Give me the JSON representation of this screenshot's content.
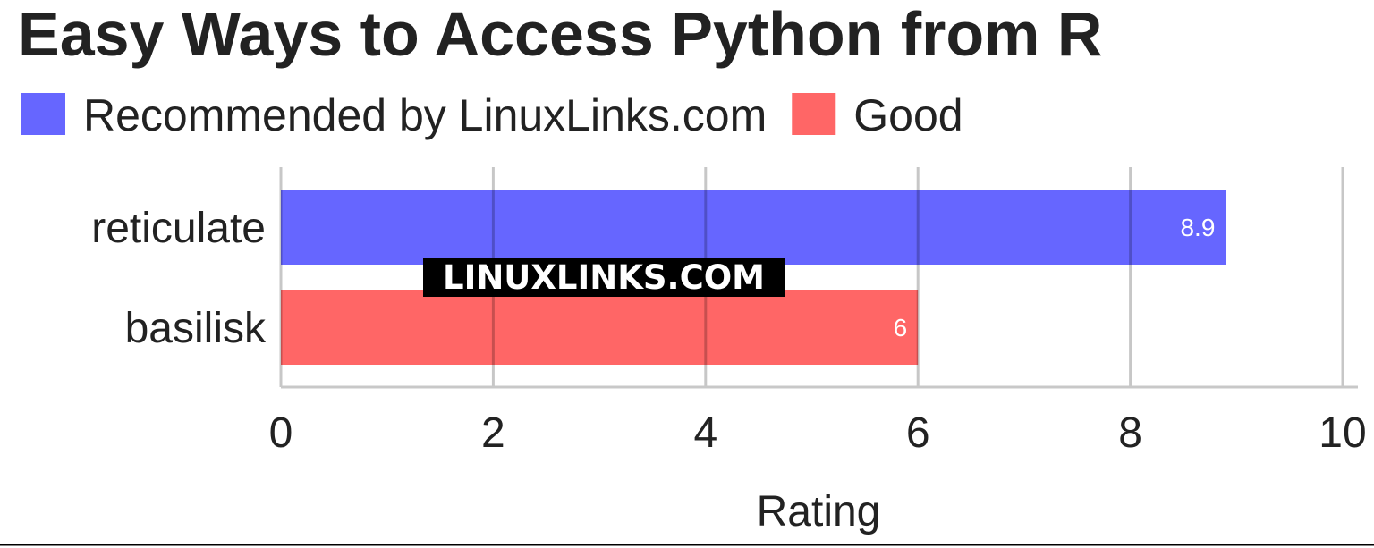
{
  "chart_data": {
    "type": "bar",
    "orientation": "horizontal",
    "title": "Easy Ways to Access Python from R",
    "categories": [
      "reticulate",
      "basilisk"
    ],
    "values": [
      8.9,
      6
    ],
    "series": [
      {
        "name": "Recommended by LinuxLinks.com",
        "color": "#6666ff"
      },
      {
        "name": "Good",
        "color": "#ff6666"
      }
    ],
    "bar_series": [
      0,
      1
    ],
    "data_labels": [
      "8.9",
      "6"
    ],
    "xlabel": "Rating",
    "ylabel": "",
    "xlim": [
      0,
      10
    ],
    "xticks": [
      "0",
      "2",
      "4",
      "6",
      "8",
      "10"
    ],
    "grid": true,
    "legend_position": "top-left"
  },
  "watermark": "LINUXLINKS.COM"
}
